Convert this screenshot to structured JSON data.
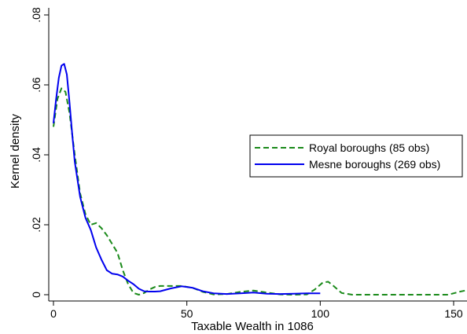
{
  "chart_data": {
    "type": "line",
    "title": "",
    "xlabel": "Taxable Wealth in 1086",
    "ylabel": "Kernel density",
    "xlim": [
      0,
      155
    ],
    "ylim": [
      0,
      0.08
    ],
    "x_ticks": [
      0,
      50,
      100,
      150
    ],
    "x_tick_labels": [
      "0",
      "50",
      "100",
      "150"
    ],
    "y_ticks": [
      0,
      0.02,
      0.04,
      0.06,
      0.08
    ],
    "y_tick_labels": [
      "0",
      ".02",
      ".04",
      ".06",
      ".08"
    ],
    "grid": false,
    "legend_position": "right",
    "series": [
      {
        "name": "Royal boroughs (85 obs)",
        "color": "#1a8a1a",
        "dash": "dashed",
        "x": [
          0,
          1.5,
          3,
          4.5,
          6,
          8,
          10,
          12,
          14,
          16,
          18,
          20,
          22,
          24,
          26,
          28,
          30,
          32,
          34,
          36,
          38,
          40,
          44,
          48,
          52,
          56,
          60,
          65,
          70,
          75,
          80,
          85,
          90,
          95,
          98,
          101,
          103,
          105,
          108,
          112,
          120,
          130,
          140,
          148,
          152,
          155
        ],
        "y": [
          0.048,
          0.056,
          0.059,
          0.058,
          0.052,
          0.04,
          0.029,
          0.023,
          0.02,
          0.0205,
          0.019,
          0.017,
          0.0145,
          0.012,
          0.007,
          0.003,
          0.0005,
          0.0,
          0.0005,
          0.0015,
          0.0022,
          0.0025,
          0.0025,
          0.0025,
          0.002,
          0.0008,
          0.0001,
          0.0002,
          0.0008,
          0.0012,
          0.0006,
          0.0001,
          0.0,
          0.0001,
          0.0015,
          0.0035,
          0.0037,
          0.0025,
          0.0005,
          0.0,
          0.0,
          0.0,
          0.0,
          0.0,
          0.0008,
          0.0013
        ]
      },
      {
        "name": "Mesne boroughs (269 obs)",
        "color": "#0000ee",
        "dash": "solid",
        "x": [
          0,
          1,
          2,
          3,
          4,
          5,
          6,
          7,
          8,
          9,
          10,
          12,
          14,
          16,
          18,
          20,
          22,
          24,
          26,
          28,
          30,
          32,
          34,
          36,
          38,
          40,
          44,
          48,
          52,
          56,
          60,
          65,
          70,
          75,
          80,
          85,
          90,
          95,
          98,
          100
        ],
        "y": [
          0.049,
          0.056,
          0.062,
          0.0655,
          0.066,
          0.063,
          0.055,
          0.046,
          0.038,
          0.033,
          0.028,
          0.022,
          0.0185,
          0.0135,
          0.01,
          0.007,
          0.006,
          0.0058,
          0.0052,
          0.004,
          0.003,
          0.0017,
          0.001,
          0.0009,
          0.0009,
          0.001,
          0.0018,
          0.0024,
          0.002,
          0.001,
          0.0004,
          0.0002,
          0.0004,
          0.0006,
          0.0003,
          0.0002,
          0.0003,
          0.0004,
          0.0004,
          0.0004
        ]
      }
    ]
  }
}
